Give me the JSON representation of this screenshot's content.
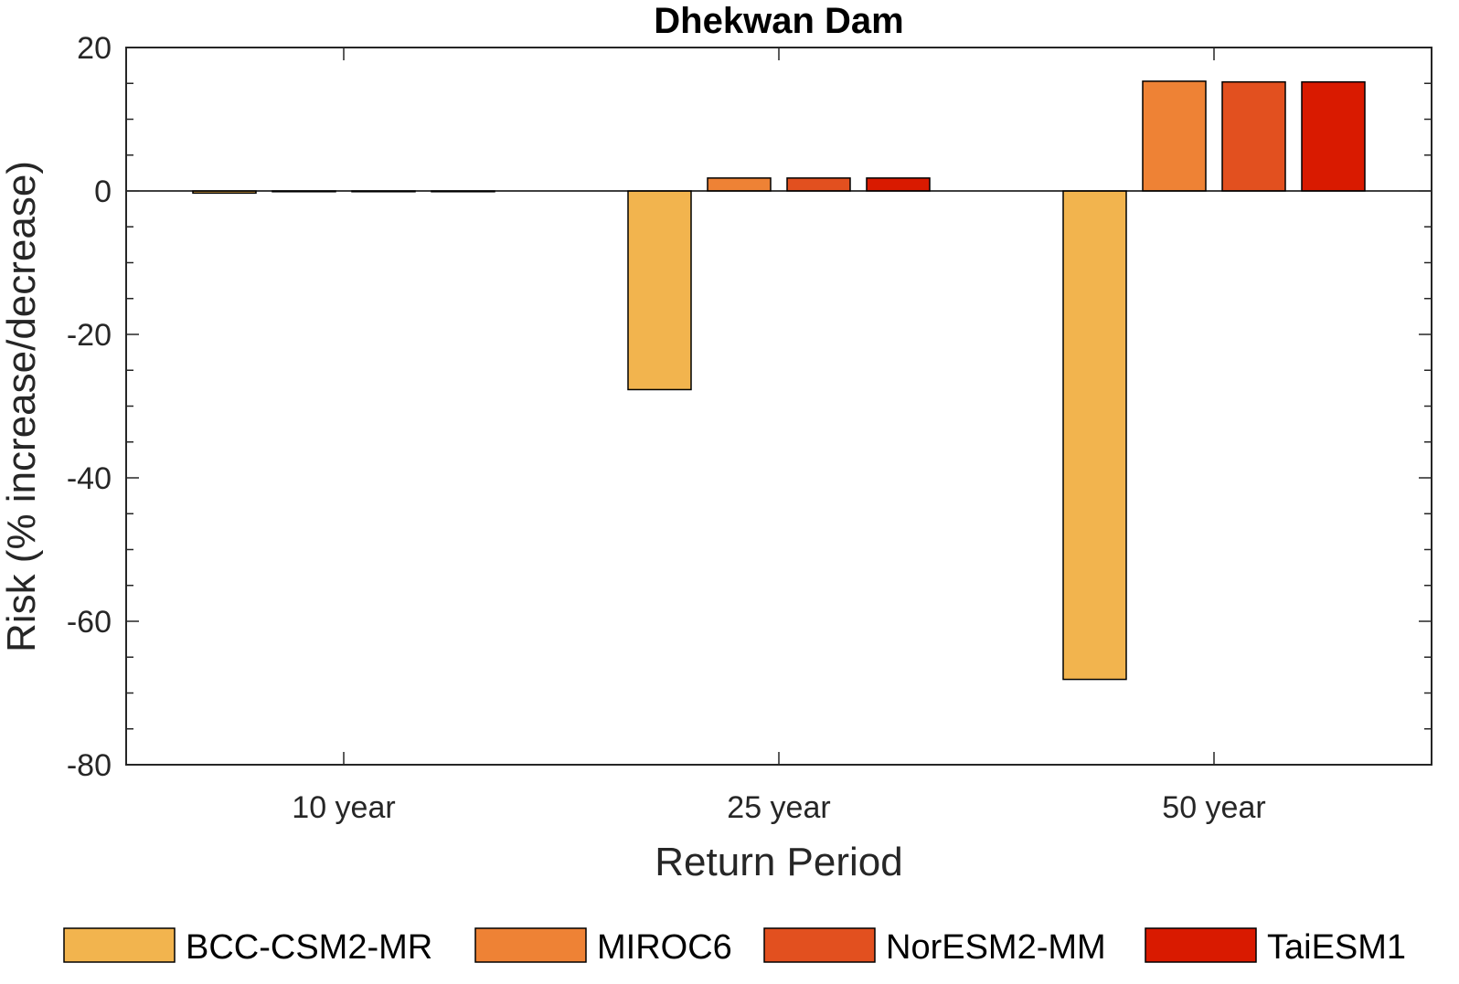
{
  "chart_data": {
    "type": "bar",
    "title": "Dhekwan Dam",
    "xlabel": "Return Period",
    "ylabel": "Risk (% increase/decrease)",
    "categories": [
      "10 year",
      "25 year",
      "50 year"
    ],
    "ylim": [
      -80,
      20
    ],
    "yticks": [
      20,
      0,
      -20,
      -40,
      -60,
      -80
    ],
    "grid": false,
    "legend_position": "bottom",
    "series": [
      {
        "name": "BCC-CSM2-MR",
        "color": "#F2B44E",
        "values": [
          -0.3,
          -27.7,
          -68.1
        ]
      },
      {
        "name": "MIROC6",
        "color": "#EE8235",
        "values": [
          0,
          1.8,
          15.3
        ]
      },
      {
        "name": "NorESM2-MM",
        "color": "#E2501F",
        "values": [
          0,
          1.8,
          15.2
        ]
      },
      {
        "name": "TaiESM1",
        "color": "#D91A00",
        "values": [
          0,
          1.8,
          15.2
        ]
      }
    ]
  }
}
